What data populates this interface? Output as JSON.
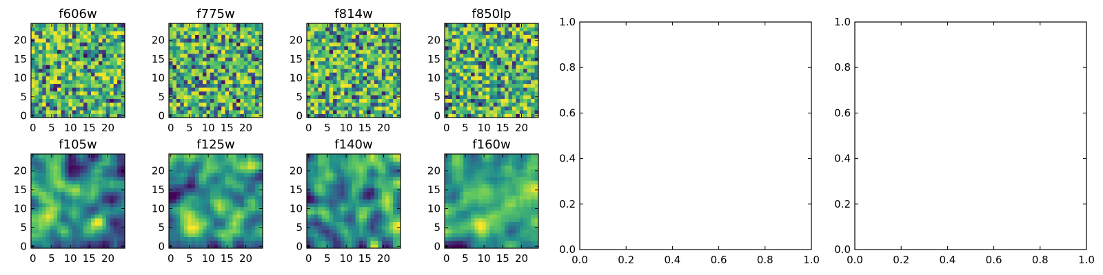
{
  "chart_data": [
    {
      "type": "heatmap",
      "title": "f606w",
      "xticks": [
        "0",
        "5",
        "10",
        "15",
        "20"
      ],
      "yticks": [
        "0",
        "5",
        "10",
        "15",
        "20"
      ],
      "xlim": [
        -0.5,
        24.5
      ],
      "ylim": [
        -0.5,
        24.5
      ],
      "grid_size": 25,
      "pattern": "noise",
      "seed": 11
    },
    {
      "type": "heatmap",
      "title": "f775w",
      "xticks": [
        "0",
        "5",
        "10",
        "15",
        "20"
      ],
      "yticks": [
        "0",
        "5",
        "10",
        "15",
        "20"
      ],
      "xlim": [
        -0.5,
        24.5
      ],
      "ylim": [
        -0.5,
        24.5
      ],
      "grid_size": 25,
      "pattern": "noise",
      "seed": 23
    },
    {
      "type": "heatmap",
      "title": "f814w",
      "xticks": [
        "0",
        "5",
        "10",
        "15",
        "20"
      ],
      "yticks": [
        "0",
        "5",
        "10",
        "15",
        "20"
      ],
      "xlim": [
        -0.5,
        24.5
      ],
      "ylim": [
        -0.5,
        24.5
      ],
      "grid_size": 25,
      "pattern": "noise",
      "seed": 37
    },
    {
      "type": "heatmap",
      "title": "f850lp",
      "xticks": [
        "0",
        "5",
        "10",
        "15",
        "20"
      ],
      "yticks": [
        "0",
        "5",
        "10",
        "15",
        "20"
      ],
      "xlim": [
        -0.5,
        24.5
      ],
      "ylim": [
        -0.5,
        24.5
      ],
      "grid_size": 25,
      "pattern": "noise",
      "seed": 41
    },
    {
      "type": "heatmap",
      "title": "f105w",
      "xticks": [
        "0",
        "5",
        "10",
        "15",
        "20"
      ],
      "yticks": [
        "0",
        "5",
        "10",
        "15",
        "20"
      ],
      "xlim": [
        -0.5,
        24.5
      ],
      "ylim": [
        -0.5,
        24.5
      ],
      "grid_size": 25,
      "pattern": "smooth",
      "seed": 53
    },
    {
      "type": "heatmap",
      "title": "f125w",
      "xticks": [
        "0",
        "5",
        "10",
        "15",
        "20"
      ],
      "yticks": [
        "0",
        "5",
        "10",
        "15",
        "20"
      ],
      "xlim": [
        -0.5,
        24.5
      ],
      "ylim": [
        -0.5,
        24.5
      ],
      "grid_size": 25,
      "pattern": "smooth",
      "seed": 67
    },
    {
      "type": "heatmap",
      "title": "f140w",
      "xticks": [
        "0",
        "5",
        "10",
        "15",
        "20"
      ],
      "yticks": [
        "0",
        "5",
        "10",
        "15",
        "20"
      ],
      "xlim": [
        -0.5,
        24.5
      ],
      "ylim": [
        -0.5,
        24.5
      ],
      "grid_size": 25,
      "pattern": "smooth",
      "seed": 79
    },
    {
      "type": "heatmap",
      "title": "f160w",
      "xticks": [
        "0",
        "5",
        "10",
        "15",
        "20"
      ],
      "yticks": [
        "0",
        "5",
        "10",
        "15",
        "20"
      ],
      "xlim": [
        -0.5,
        24.5
      ],
      "ylim": [
        -0.5,
        24.5
      ],
      "grid_size": 25,
      "pattern": "smooth",
      "seed": 97
    },
    {
      "type": "empty",
      "title": "",
      "xticks": [
        "0.0",
        "0.2",
        "0.4",
        "0.6",
        "0.8",
        "1.0"
      ],
      "yticks": [
        "0.0",
        "0.2",
        "0.4",
        "0.6",
        "0.8",
        "1.0"
      ],
      "xlim": [
        0,
        1
      ],
      "ylim": [
        0,
        1
      ]
    },
    {
      "type": "empty",
      "title": "",
      "xticks": [
        "0.0",
        "0.2",
        "0.4",
        "0.6",
        "0.8",
        "1.0"
      ],
      "yticks": [
        "0.0",
        "0.2",
        "0.4",
        "0.6",
        "0.8",
        "1.0"
      ],
      "xlim": [
        0,
        1
      ],
      "ylim": [
        0,
        1
      ]
    }
  ],
  "colormap": [
    "#440154",
    "#3b528b",
    "#21918c",
    "#5ec962",
    "#fde725"
  ]
}
